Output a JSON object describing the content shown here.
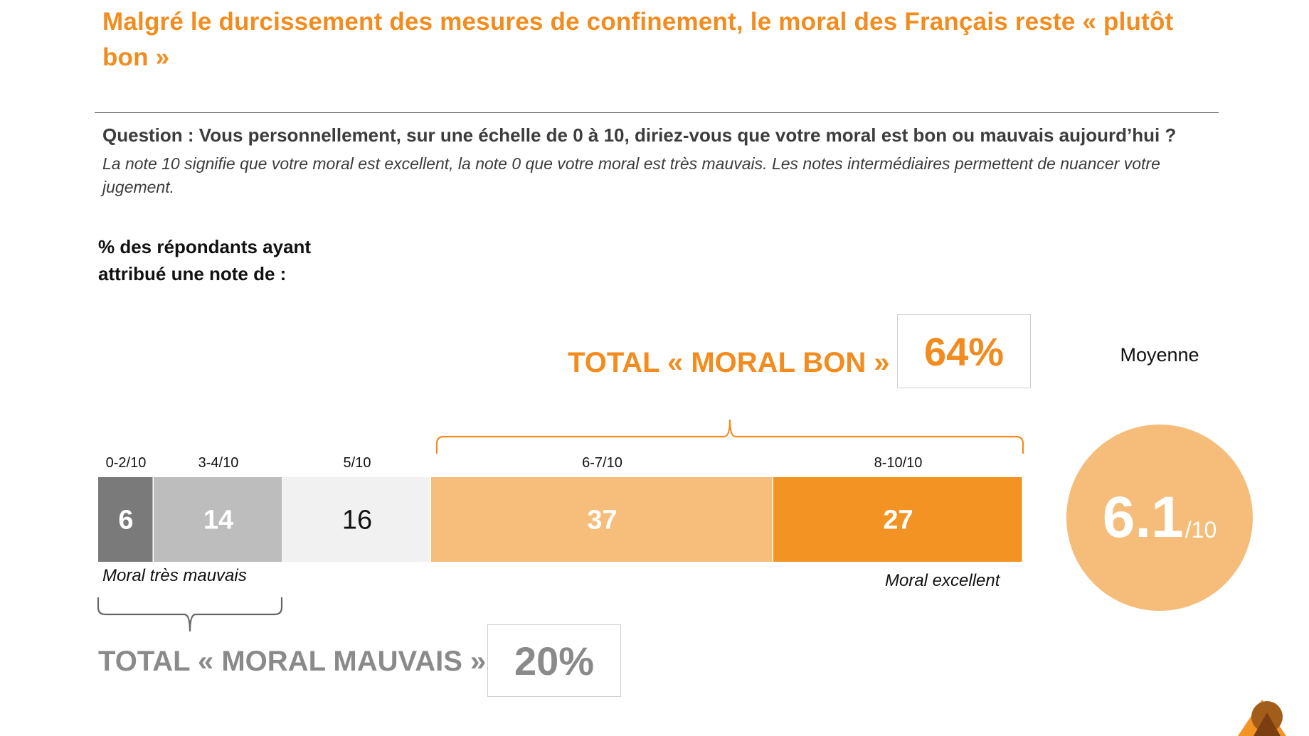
{
  "header": {
    "title": "Malgré le durcissement des mesures de confinement, le moral des Français reste « plutôt bon »",
    "question": "Question : Vous personnellement, sur une échelle de 0 à 10, diriez-vous que votre moral est bon ou mauvais aujourd’hui ?",
    "question_note": "La note 10 signifie que votre moral est excellent, la note 0 que votre moral est très mauvais. Les notes intermédiaires permettent de nuancer votre jugement.",
    "unit_note": "% des répondants ayant attribué une note de :"
  },
  "totals": {
    "bon_label": "TOTAL « MORAL  BON »",
    "bon_value": "64%",
    "mauvais_label": "TOTAL « MORAL MAUVAIS »",
    "mauvais_value": "20%"
  },
  "average": {
    "label": "Moyenne",
    "value": "6.1",
    "suffix": "/10"
  },
  "scale_labels": {
    "low": "Moral très mauvais",
    "high": "Moral excellent"
  },
  "colors": {
    "accent": "#f28c1e",
    "muted_total": "#8a8a8a"
  },
  "chart_data": {
    "type": "bar",
    "orientation": "horizontal-stacked-100",
    "categories": [
      "0-2/10",
      "3-4/10",
      "5/10",
      "6-7/10",
      "8-10/10"
    ],
    "values": [
      6,
      14,
      16,
      37,
      27
    ],
    "colors": [
      "#7a7a7a",
      "#bdbdbd",
      "#f1f1f1",
      "#f7bd7a",
      "#f29323"
    ],
    "label_colors": [
      "#ffffff",
      "#ffffff",
      "#111111",
      "#ffffff",
      "#ffffff"
    ],
    "groups": [
      {
        "name": "TOTAL « MORAL MAUVAIS »",
        "from": 0,
        "to": 1,
        "total": 20
      },
      {
        "name": "TOTAL « MORAL  BON »",
        "from": 3,
        "to": 4,
        "total": 64
      }
    ]
  }
}
